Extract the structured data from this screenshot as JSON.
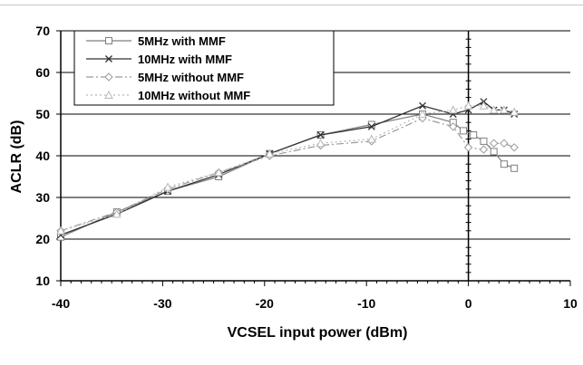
{
  "chart_data": {
    "type": "line",
    "xlabel": "VCSEL input power (dBm)",
    "ylabel": "ACLR (dB)",
    "xlim": [
      -40,
      10
    ],
    "ylim": [
      10,
      70
    ],
    "x_ticks": [
      "-40",
      "-30",
      "-20",
      "-10",
      "0",
      "10"
    ],
    "y_ticks": [
      "10",
      "20",
      "30",
      "40",
      "50",
      "60",
      "70"
    ],
    "grid": "horizontal",
    "legend_position": "top-left",
    "series": [
      {
        "name": "5MHz with MMF",
        "color": "#7f7f7f",
        "dash": "solid",
        "marker": "square",
        "x": [
          -40,
          -34.5,
          -29.5,
          -24.5,
          -19.5,
          -14.5,
          -9.5,
          -4.5,
          -1.5,
          -0.5,
          0.5,
          1.5,
          2.5,
          3.5,
          4.5
        ],
        "y": [
          20.5,
          26.5,
          31.5,
          35,
          40.5,
          45,
          47.5,
          50,
          48,
          46,
          45,
          43.5,
          41,
          38,
          37
        ]
      },
      {
        "name": "10MHz with MMF",
        "color": "#303030",
        "dash": "solid",
        "marker": "x",
        "x": [
          -40,
          -34.5,
          -29.5,
          -24.5,
          -19.5,
          -14.5,
          -9.5,
          -4.5,
          -1.5,
          0,
          1.5,
          2.5,
          3.5,
          4.5
        ],
        "y": [
          21,
          26,
          31.5,
          35.5,
          40.5,
          45,
          47,
          52,
          50,
          51,
          53,
          51,
          51,
          50
        ]
      },
      {
        "name": "5MHz without MMF",
        "color": "#9a9a9a",
        "dash": "dashdot",
        "marker": "diamond",
        "x": [
          -40,
          -34.5,
          -29.5,
          -24.5,
          -19.5,
          -14.5,
          -9.5,
          -4.5,
          -1.5,
          0,
          1.5,
          2.5,
          3.5,
          4.5
        ],
        "y": [
          22,
          26.5,
          32,
          36,
          40,
          42.5,
          43.5,
          49,
          47,
          42,
          41.5,
          43,
          43,
          42
        ]
      },
      {
        "name": "10MHz without MMF",
        "color": "#b8b8b8",
        "dash": "dotted",
        "marker": "triangle",
        "x": [
          -40,
          -34.5,
          -29.5,
          -24.5,
          -19.5,
          -14.5,
          -9.5,
          -4.5,
          -1.5,
          0,
          1.5,
          2.5,
          3.5,
          4.5
        ],
        "y": [
          22,
          26,
          32.5,
          36,
          40.5,
          43,
          44,
          50,
          51,
          52,
          52,
          51,
          51,
          50.5
        ]
      }
    ]
  }
}
